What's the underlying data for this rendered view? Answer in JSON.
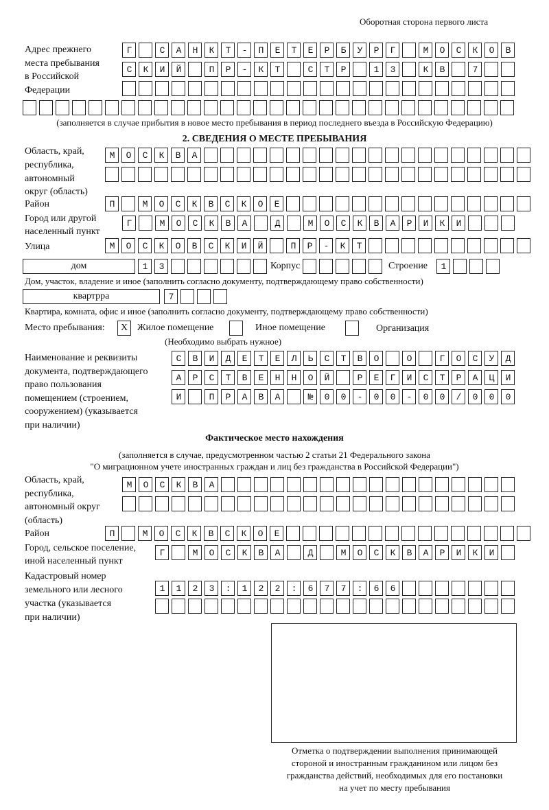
{
  "header": {
    "side_note": "Оборотная сторона первого листа"
  },
  "prev_address": {
    "label": [
      "Адрес прежнего",
      "места пребывания",
      "в Российской",
      "Федерации"
    ],
    "rows": [
      {
        "value": "Г САНКТ-ПЕТЕРБУРГ МОСКОВ",
        "cells": 24
      },
      {
        "value": "СКИЙ ПР-КТ СТР 13 КВ 7",
        "cells": 24
      },
      {
        "value": "",
        "cells": 24
      },
      {
        "value": "",
        "cells": 30
      }
    ],
    "note": "(заполняется в случае прибытия в новое место пребывания в период последнего въезда в Российскую Федерацию)"
  },
  "section2": {
    "title": "2. СВЕДЕНИЯ О МЕСТЕ ПРЕБЫВАНИЯ",
    "region_label": [
      "Область, край,",
      "республика,",
      "автономный",
      "округ (область)"
    ],
    "region_rows": [
      {
        "value": "МОСКВА",
        "cells": 26
      },
      {
        "value": "",
        "cells": 26
      }
    ],
    "district_label": "Район",
    "district_row": {
      "value": "П МОСКВСКОЕ",
      "cells": 26
    },
    "city_label": [
      "Город или другой",
      "населенный пункт"
    ],
    "city_row": {
      "value": "Г МОСКВА Д МОСКВАРИКИ",
      "cells": 24
    },
    "street_label": "Улица",
    "street_row": {
      "value": "МОСКОВСКИЙ ПР-КТ",
      "cells": 26
    },
    "house_type": "дом",
    "house_row": {
      "value": "13",
      "cells": 8
    },
    "korpus_label": "Корпус",
    "korpus_row": {
      "value": "",
      "cells": 5
    },
    "stroenie_label": "Строение",
    "stroenie_row": {
      "value": "1",
      "cells": 4
    },
    "house_caption": "Дом, участок, владение и иное (заполнить согласно документу, подтверждающему право собственности)",
    "apt_type": "квартрра",
    "apt_row": {
      "value": "7",
      "cells": 4
    },
    "apt_caption": "Квартира, комната, офис и иное (заполнить согласно документу, подтверждающему право собственности)",
    "stay_place_label": "Место пребывания:",
    "options": [
      {
        "mark": "X",
        "label": "Жилое помещение"
      },
      {
        "mark": "",
        "label": "Иное помещение"
      },
      {
        "mark": "",
        "label": "Организация"
      }
    ],
    "choose_note": "(Необходимо выбрать нужное)",
    "doc_label": [
      "Наименование и реквизиты",
      "документа, подтверждающего",
      "право пользования",
      "помещением (строением,",
      "сооружением) (указывается",
      "при наличии)"
    ],
    "doc_rows": [
      {
        "value": "СВИДЕТЕЛЬСТВО О ГОСУД",
        "cells": 21
      },
      {
        "value": "АРСТВЕННОЙ РЕГИСТРАЦИ",
        "cells": 21
      },
      {
        "value": "И ПРАВА №00-00-00/000",
        "cells": 21
      }
    ]
  },
  "actual": {
    "title": "Фактическое место нахождения",
    "note": [
      "(заполняется в случае, предусмотренном частью 2 статьи 21 Федерального закона",
      "\"О миграционном учете иностранных граждан и лиц без гражданства в Российской Федерации\")"
    ],
    "region_label": [
      "Область, край,",
      "республика,",
      "автономный округ",
      "(область)"
    ],
    "region_rows": [
      {
        "value": "МОСКВА",
        "cells": 24
      },
      {
        "value": "",
        "cells": 24
      }
    ],
    "district_label": "Район",
    "district_row": {
      "value": "П МОСКВСКОЕ",
      "cells": 26
    },
    "city_label": [
      "Город, сельское поселение,",
      "иной населенный пункт"
    ],
    "city_row": {
      "value": "Г МОСКВА Д МОСКВАРИКИ",
      "cells": 22
    },
    "cadastre_label": [
      "Кадастровый номер",
      "земельного или лесного",
      "участка (указывается",
      "при наличии)"
    ],
    "cadastre_rows": [
      {
        "value": "1123:122:677:66",
        "cells": 22
      },
      {
        "value": "",
        "cells": 22
      }
    ],
    "stamp_caption": [
      "Отметка о подтверждении выполнения принимающей",
      "стороной и иностранным гражданином или лицом без",
      "гражданства действий, необходимых для его постановки",
      "на учет по месту пребывания"
    ]
  }
}
